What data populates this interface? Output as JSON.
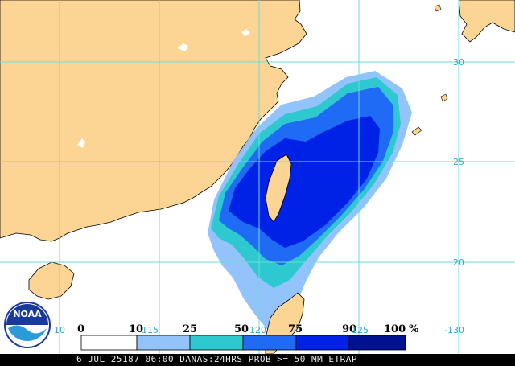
{
  "colors": {
    "land": "#fcd595",
    "ocean": "#ffffff",
    "grid": "#6fdada",
    "coast": "#000000",
    "lake": "#ffffff",
    "prob_10_25": "#93c3fb",
    "prob_25_50": "#2ec8d0",
    "prob_50_75": "#1f6bf5",
    "prob_75_90": "#0022e6",
    "prob_90_100": "#00128f"
  },
  "latitude_labels": [
    "30",
    "25",
    "20"
  ],
  "longitude_labels": [
    "10",
    "115",
    "120",
    "125",
    "-130"
  ],
  "legend": {
    "values": [
      "0",
      "10",
      "25",
      "50",
      "75",
      "90",
      "100",
      "%"
    ],
    "swatch_colors": [
      "#ffffff",
      "#93c3fb",
      "#2ec8d0",
      "#1f6bf5",
      "#0022e6",
      "#00128f"
    ]
  },
  "logo": {
    "icon": "noaa-logo-icon",
    "text": "NOAA"
  },
  "footer_text": "6 JUL 25187 06:00 DANAS:24HRS PROB >= 50 MM ETRAP"
}
